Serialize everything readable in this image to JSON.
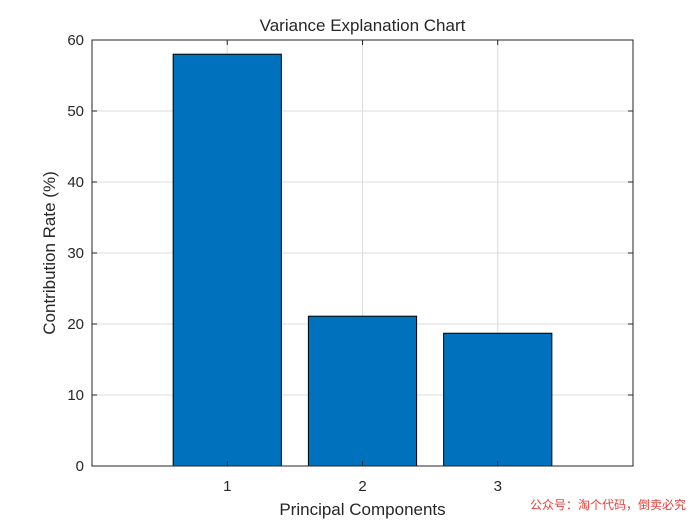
{
  "chart_data": {
    "type": "bar",
    "title": "Variance Explanation Chart",
    "xlabel": "Principal Components",
    "ylabel": "Contribution Rate (%)",
    "categories": [
      "1",
      "2",
      "3"
    ],
    "values": [
      58,
      21.1,
      18.7
    ],
    "xlim": [
      0,
      4
    ],
    "ylim": [
      0,
      60
    ],
    "yticks": [
      0,
      10,
      20,
      30,
      40,
      50,
      60
    ],
    "grid": true,
    "bar_color": "#0072BD",
    "bar_edge_color": "#000000"
  },
  "watermark": "公众号：淘个代码，倒卖必究"
}
